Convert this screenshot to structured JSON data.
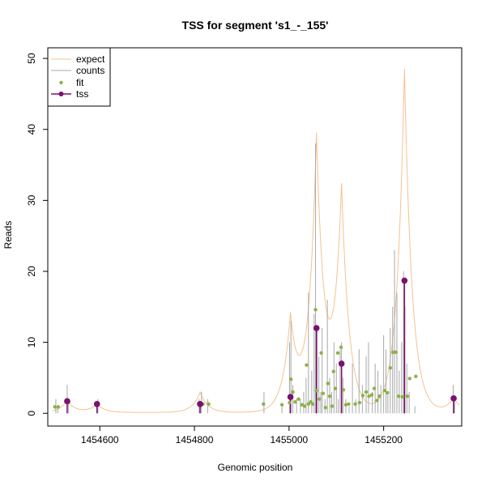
{
  "colors": {
    "expect": "#F5C28F",
    "counts": "#A8A8A8",
    "fit": "#8DB04A",
    "tss": "#7A1070"
  },
  "chart_data": {
    "type": "scatter",
    "title": "TSS for segment 's1_-_155'",
    "xlabel": "Genomic position",
    "ylabel": "Reads",
    "xlim": [
      1454490,
      1455365
    ],
    "ylim": [
      -1.8,
      51.5
    ],
    "xticks": [
      1454600,
      1454800,
      1455000,
      1455200
    ],
    "yticks": [
      0,
      10,
      20,
      30,
      40,
      50
    ],
    "legend": {
      "position": "top-left",
      "entries": [
        "expect",
        "counts",
        "fit",
        "tss"
      ]
    },
    "expect_peaks": [
      {
        "x": 1454531,
        "y": 1.8
      },
      {
        "x": 1454594,
        "y": 1.3
      },
      {
        "x": 1454812,
        "y": 3.0
      },
      {
        "x": 1455003,
        "y": 13.0
      },
      {
        "x": 1455058,
        "y": 38.0
      },
      {
        "x": 1455111,
        "y": 31.0
      },
      {
        "x": 1455244,
        "y": 48.5
      },
      {
        "x": 1455348,
        "y": 2.2
      }
    ],
    "expect_baseline_x": [
      1454500,
      1455360
    ],
    "counts": [
      {
        "x": 1454507,
        "y": 2
      },
      {
        "x": 1454511,
        "y": 1
      },
      {
        "x": 1454531,
        "y": 4
      },
      {
        "x": 1454534,
        "y": 2
      },
      {
        "x": 1454594,
        "y": 1
      },
      {
        "x": 1454596,
        "y": 2
      },
      {
        "x": 1454810,
        "y": 2
      },
      {
        "x": 1454815,
        "y": 3
      },
      {
        "x": 1454828,
        "y": 2
      },
      {
        "x": 1454947,
        "y": 3
      },
      {
        "x": 1454985,
        "y": 1
      },
      {
        "x": 1455001,
        "y": 10
      },
      {
        "x": 1455004,
        "y": 13
      },
      {
        "x": 1455008,
        "y": 4
      },
      {
        "x": 1455016,
        "y": 2
      },
      {
        "x": 1455024,
        "y": 2
      },
      {
        "x": 1455031,
        "y": 3
      },
      {
        "x": 1455036,
        "y": 5
      },
      {
        "x": 1455041,
        "y": 17
      },
      {
        "x": 1455048,
        "y": 6
      },
      {
        "x": 1455053,
        "y": 14
      },
      {
        "x": 1455056,
        "y": 38
      },
      {
        "x": 1455059,
        "y": 12
      },
      {
        "x": 1455063,
        "y": 8
      },
      {
        "x": 1455067,
        "y": 3
      },
      {
        "x": 1455070,
        "y": 12
      },
      {
        "x": 1455076,
        "y": 2
      },
      {
        "x": 1455081,
        "y": 16
      },
      {
        "x": 1455086,
        "y": 5
      },
      {
        "x": 1455090,
        "y": 3
      },
      {
        "x": 1455095,
        "y": 10
      },
      {
        "x": 1455100,
        "y": 7
      },
      {
        "x": 1455104,
        "y": 2
      },
      {
        "x": 1455108,
        "y": 9
      },
      {
        "x": 1455111,
        "y": 10
      },
      {
        "x": 1455114,
        "y": 5
      },
      {
        "x": 1455120,
        "y": 2
      },
      {
        "x": 1455127,
        "y": 1
      },
      {
        "x": 1455134,
        "y": 7
      },
      {
        "x": 1455141,
        "y": 2
      },
      {
        "x": 1455148,
        "y": 9
      },
      {
        "x": 1455155,
        "y": 4
      },
      {
        "x": 1455163,
        "y": 8
      },
      {
        "x": 1455168,
        "y": 10
      },
      {
        "x": 1455176,
        "y": 3
      },
      {
        "x": 1455182,
        "y": 7
      },
      {
        "x": 1455188,
        "y": 6
      },
      {
        "x": 1455194,
        "y": 4
      },
      {
        "x": 1455200,
        "y": 11
      },
      {
        "x": 1455205,
        "y": 9
      },
      {
        "x": 1455209,
        "y": 3
      },
      {
        "x": 1455214,
        "y": 12
      },
      {
        "x": 1455219,
        "y": 15
      },
      {
        "x": 1455223,
        "y": 23
      },
      {
        "x": 1455228,
        "y": 17
      },
      {
        "x": 1455233,
        "y": 6
      },
      {
        "x": 1455238,
        "y": 10
      },
      {
        "x": 1455242,
        "y": 20
      },
      {
        "x": 1455245,
        "y": 15
      },
      {
        "x": 1455249,
        "y": 7
      },
      {
        "x": 1455254,
        "y": 3
      },
      {
        "x": 1455266,
        "y": 1
      },
      {
        "x": 1455347,
        "y": 4
      },
      {
        "x": 1455350,
        "y": 2
      }
    ],
    "fit": [
      {
        "x": 1454505,
        "y": 0.9
      },
      {
        "x": 1454512,
        "y": 0.9
      },
      {
        "x": 1454534,
        "y": 1.6
      },
      {
        "x": 1454596,
        "y": 1.2
      },
      {
        "x": 1454809,
        "y": 1.4
      },
      {
        "x": 1454818,
        "y": 1.3
      },
      {
        "x": 1454830,
        "y": 1.3
      },
      {
        "x": 1454946,
        "y": 1.3
      },
      {
        "x": 1454985,
        "y": 1.2
      },
      {
        "x": 1455001,
        "y": 1.5
      },
      {
        "x": 1455004,
        "y": 4.8
      },
      {
        "x": 1455008,
        "y": 3.0
      },
      {
        "x": 1455013,
        "y": 1.6
      },
      {
        "x": 1455020,
        "y": 2.0
      },
      {
        "x": 1455027,
        "y": 1.2
      },
      {
        "x": 1455033,
        "y": 1.0
      },
      {
        "x": 1455037,
        "y": 6.8
      },
      {
        "x": 1455041,
        "y": 1.3
      },
      {
        "x": 1455046,
        "y": 1.6
      },
      {
        "x": 1455050,
        "y": 1.3
      },
      {
        "x": 1455056,
        "y": 14.6
      },
      {
        "x": 1455058,
        "y": 3.2
      },
      {
        "x": 1455064,
        "y": 2.0
      },
      {
        "x": 1455068,
        "y": 8.5
      },
      {
        "x": 1455072,
        "y": 2.8
      },
      {
        "x": 1455077,
        "y": 0.8
      },
      {
        "x": 1455082,
        "y": 4.2
      },
      {
        "x": 1455086,
        "y": 2.4
      },
      {
        "x": 1455091,
        "y": 1.0
      },
      {
        "x": 1455094,
        "y": 5.9
      },
      {
        "x": 1455098,
        "y": 3.5
      },
      {
        "x": 1455103,
        "y": 8.5
      },
      {
        "x": 1455110,
        "y": 9.3
      },
      {
        "x": 1455115,
        "y": 3.3
      },
      {
        "x": 1455120,
        "y": 1.2
      },
      {
        "x": 1455126,
        "y": 1.3
      },
      {
        "x": 1455140,
        "y": 1.3
      },
      {
        "x": 1455149,
        "y": 1.5
      },
      {
        "x": 1455156,
        "y": 2.5
      },
      {
        "x": 1455163,
        "y": 3.0
      },
      {
        "x": 1455169,
        "y": 2.4
      },
      {
        "x": 1455175,
        "y": 2.6
      },
      {
        "x": 1455180,
        "y": 3.5
      },
      {
        "x": 1455186,
        "y": 1.8
      },
      {
        "x": 1455191,
        "y": 2.4
      },
      {
        "x": 1455202,
        "y": 3.2
      },
      {
        "x": 1455208,
        "y": 2.9
      },
      {
        "x": 1455214,
        "y": 6.4
      },
      {
        "x": 1455220,
        "y": 8.6
      },
      {
        "x": 1455226,
        "y": 8.6
      },
      {
        "x": 1455232,
        "y": 2.4
      },
      {
        "x": 1455240,
        "y": 2.3
      },
      {
        "x": 1455250,
        "y": 2.4
      },
      {
        "x": 1455255,
        "y": 4.9
      },
      {
        "x": 1455268,
        "y": 5.2
      },
      {
        "x": 1455347,
        "y": 2.0
      }
    ],
    "tss": [
      {
        "x": 1454531,
        "y": 1.7
      },
      {
        "x": 1454594,
        "y": 1.3
      },
      {
        "x": 1454812,
        "y": 1.3
      },
      {
        "x": 1455003,
        "y": 2.3
      },
      {
        "x": 1455058,
        "y": 12.0
      },
      {
        "x": 1455111,
        "y": 7.0
      },
      {
        "x": 1455244,
        "y": 18.7
      },
      {
        "x": 1455348,
        "y": 2.1
      }
    ]
  }
}
